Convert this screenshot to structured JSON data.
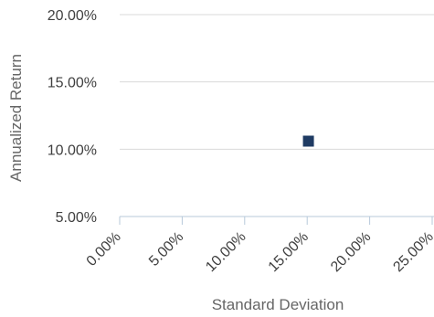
{
  "chart_data": {
    "type": "scatter",
    "xlabel": "Standard Deviation",
    "ylabel": "Annualized Return",
    "x_ticks": [
      0,
      5,
      10,
      15,
      20,
      25
    ],
    "y_ticks": [
      5,
      10,
      15,
      20
    ],
    "x_tick_labels": [
      "0.00%",
      "5.00%",
      "10.00%",
      "15.00%",
      "20.00%",
      "25.00%"
    ],
    "y_tick_labels": [
      "5.00%",
      "10.00%",
      "15.00%",
      "20.00%"
    ],
    "xlim": [
      0,
      25
    ],
    "ylim": [
      5,
      20
    ],
    "grid": true,
    "points": [
      {
        "x": 15.1,
        "y": 10.6,
        "color": "#1f3b63",
        "marker": "square"
      }
    ]
  }
}
